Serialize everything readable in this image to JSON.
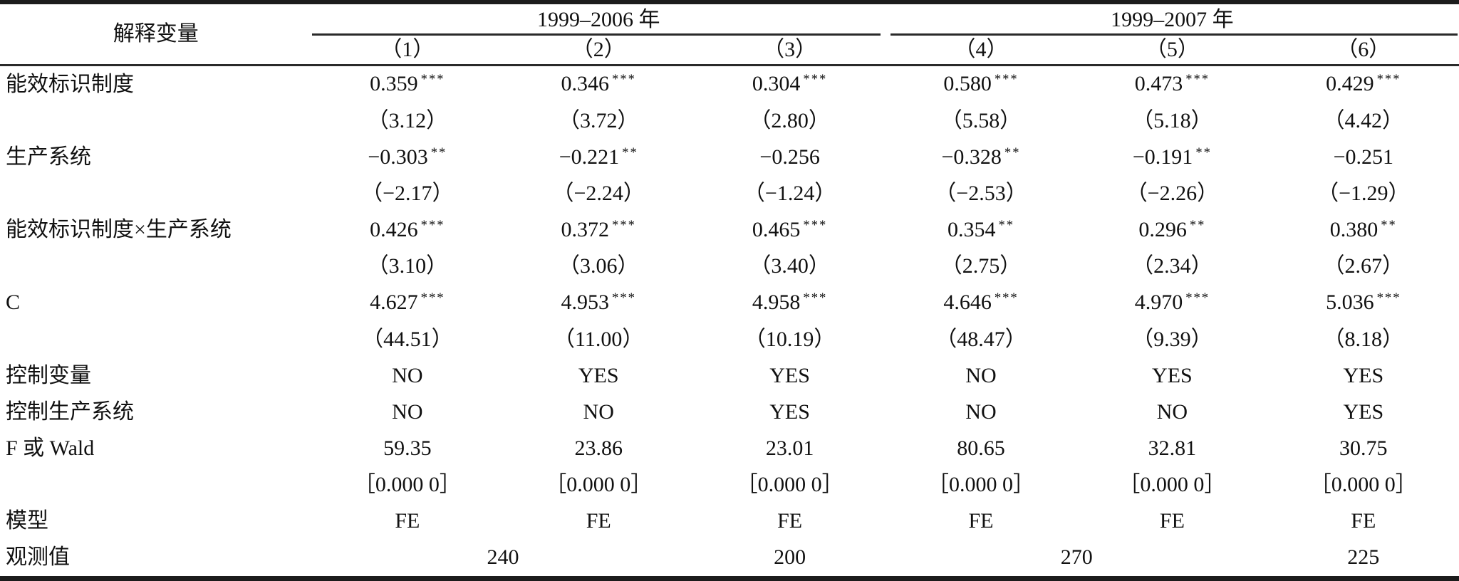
{
  "table": {
    "header": {
      "explanatory_label": "解释变量",
      "groups": [
        {
          "label": "1999–2006 年",
          "cols": [
            "（1）",
            "（2）",
            "（3）"
          ]
        },
        {
          "label": "1999–2007 年",
          "cols": [
            "（4）",
            "（5）",
            "（6）"
          ]
        }
      ]
    },
    "rows": [
      {
        "label": "能效标识制度",
        "cells": [
          {
            "t": "0.359",
            "s": "***"
          },
          {
            "t": "0.346",
            "s": "***"
          },
          {
            "t": "0.304",
            "s": "***"
          },
          {
            "t": "0.580",
            "s": "***"
          },
          {
            "t": "0.473",
            "s": "***"
          },
          {
            "t": "0.429",
            "s": "***"
          }
        ]
      },
      {
        "label": "",
        "cells": [
          {
            "t": "（3.12）"
          },
          {
            "t": "（3.72）"
          },
          {
            "t": "（2.80）"
          },
          {
            "t": "（5.58）"
          },
          {
            "t": "（5.18）"
          },
          {
            "t": "（4.42）"
          }
        ]
      },
      {
        "label": "生产系统",
        "cells": [
          {
            "t": "−0.303",
            "s": "**"
          },
          {
            "t": "−0.221",
            "s": "**"
          },
          {
            "t": "−0.256"
          },
          {
            "t": "−0.328",
            "s": "**"
          },
          {
            "t": "−0.191",
            "s": "**"
          },
          {
            "t": "−0.251"
          }
        ]
      },
      {
        "label": "",
        "cells": [
          {
            "t": "（−2.17）"
          },
          {
            "t": "（−2.24）"
          },
          {
            "t": "（−1.24）"
          },
          {
            "t": "（−2.53）"
          },
          {
            "t": "（−2.26）"
          },
          {
            "t": "（−1.29）"
          }
        ]
      },
      {
        "label": "能效标识制度×生产系统",
        "cells": [
          {
            "t": "0.426",
            "s": "***"
          },
          {
            "t": "0.372",
            "s": "***"
          },
          {
            "t": "0.465",
            "s": "***"
          },
          {
            "t": "0.354",
            "s": "**"
          },
          {
            "t": "0.296",
            "s": "**"
          },
          {
            "t": "0.380",
            "s": "**"
          }
        ]
      },
      {
        "label": "",
        "cells": [
          {
            "t": "（3.10）"
          },
          {
            "t": "（3.06）"
          },
          {
            "t": "（3.40）"
          },
          {
            "t": "（2.75）"
          },
          {
            "t": "（2.34）"
          },
          {
            "t": "（2.67）"
          }
        ]
      },
      {
        "label": "C",
        "cells": [
          {
            "t": "4.627",
            "s": "***"
          },
          {
            "t": "4.953",
            "s": "***"
          },
          {
            "t": "4.958",
            "s": "***"
          },
          {
            "t": "4.646",
            "s": "***"
          },
          {
            "t": "4.970",
            "s": "***"
          },
          {
            "t": "5.036",
            "s": "***"
          }
        ]
      },
      {
        "label": "",
        "cells": [
          {
            "t": "（44.51）"
          },
          {
            "t": "（11.00）"
          },
          {
            "t": "（10.19）"
          },
          {
            "t": "（48.47）"
          },
          {
            "t": "（9.39）"
          },
          {
            "t": "（8.18）"
          }
        ]
      },
      {
        "label": "控制变量",
        "cells": [
          {
            "t": "NO"
          },
          {
            "t": "YES"
          },
          {
            "t": "YES"
          },
          {
            "t": "NO"
          },
          {
            "t": "YES"
          },
          {
            "t": "YES"
          }
        ]
      },
      {
        "label": "控制生产系统",
        "cells": [
          {
            "t": "NO"
          },
          {
            "t": "NO"
          },
          {
            "t": "YES"
          },
          {
            "t": "NO"
          },
          {
            "t": "NO"
          },
          {
            "t": "YES"
          }
        ]
      },
      {
        "label": "F 或 Wald",
        "cells": [
          {
            "t": "59.35"
          },
          {
            "t": "23.86"
          },
          {
            "t": "23.01"
          },
          {
            "t": "80.65"
          },
          {
            "t": "32.81"
          },
          {
            "t": "30.75"
          }
        ]
      },
      {
        "label": "",
        "cells": [
          {
            "t": "［0.000 0］"
          },
          {
            "t": "［0.000 0］"
          },
          {
            "t": "［0.000 0］"
          },
          {
            "t": "［0.000 0］"
          },
          {
            "t": "［0.000 0］"
          },
          {
            "t": "［0.000 0］"
          }
        ]
      },
      {
        "label": "模型",
        "cells": [
          {
            "t": "FE"
          },
          {
            "t": "FE"
          },
          {
            "t": "FE"
          },
          {
            "t": "FE"
          },
          {
            "t": "FE"
          },
          {
            "t": "FE"
          }
        ]
      },
      {
        "label": "观测值",
        "cells": [
          {
            "t": "240",
            "span": 2
          },
          {
            "t": "200"
          },
          {
            "t": "270",
            "span": 2
          },
          {
            "t": "225"
          }
        ]
      }
    ]
  },
  "colors": {
    "text": "#111111",
    "rule_heavy": "#1c1c1c",
    "rule_light": "#2a2a2a"
  }
}
